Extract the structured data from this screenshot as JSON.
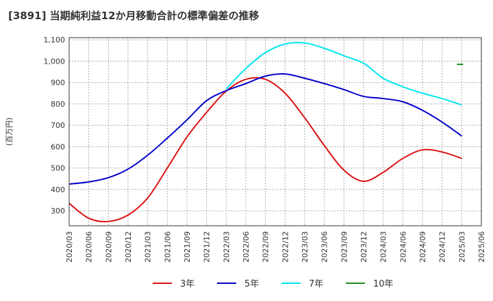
{
  "chart_data": {
    "type": "line",
    "title": "[3891]  当期純利益12か月移動合計の標準偏差の推移",
    "xlabel": "",
    "ylabel": "(百万円)",
    "ylim": [
      230,
      1110
    ],
    "yticks": [
      300,
      400,
      500,
      600,
      700,
      800,
      900,
      1000,
      1100
    ],
    "ytick_labels": [
      "300",
      "400",
      "500",
      "600",
      "700",
      "800",
      "900",
      "1,000",
      "1,100"
    ],
    "xticks": [
      "2020/03",
      "2020/06",
      "2020/09",
      "2020/12",
      "2021/03",
      "2021/06",
      "2021/09",
      "2021/12",
      "2022/03",
      "2022/06",
      "2022/09",
      "2022/12",
      "2023/03",
      "2023/06",
      "2023/09",
      "2023/12",
      "2024/03",
      "2024/06",
      "2024/09",
      "2024/12",
      "2025/03",
      "2025/06"
    ],
    "grid": true,
    "legend_position": "bottom",
    "series": [
      {
        "name": "3年",
        "color": "#dd1111",
        "x": [
          "2020/03",
          "2020/06",
          "2020/09",
          "2020/12",
          "2021/03",
          "2021/06",
          "2021/09",
          "2021/12",
          "2022/03",
          "2022/06",
          "2022/09",
          "2022/12",
          "2023/03",
          "2023/06",
          "2023/09",
          "2023/12",
          "2024/03",
          "2024/06",
          "2024/09",
          "2024/12",
          "2025/03"
        ],
        "values": [
          335,
          265,
          250,
          280,
          360,
          500,
          645,
          760,
          860,
          915,
          915,
          850,
          735,
          605,
          490,
          438,
          480,
          545,
          585,
          575,
          545
        ]
      },
      {
        "name": "5年",
        "color": "#0000cc",
        "x": [
          "2020/03",
          "2020/06",
          "2020/09",
          "2020/12",
          "2021/03",
          "2021/06",
          "2021/09",
          "2021/12",
          "2022/03",
          "2022/06",
          "2022/09",
          "2022/12",
          "2023/03",
          "2023/06",
          "2023/09",
          "2023/12",
          "2024/03",
          "2024/06",
          "2024/09",
          "2024/12",
          "2025/03"
        ],
        "values": [
          425,
          435,
          455,
          495,
          560,
          640,
          725,
          815,
          862,
          895,
          930,
          940,
          920,
          895,
          867,
          835,
          825,
          810,
          770,
          715,
          650
        ]
      },
      {
        "name": "7年",
        "color": "#00e5ee",
        "x": [
          "2022/03",
          "2022/06",
          "2022/09",
          "2022/12",
          "2023/03",
          "2023/06",
          "2023/09",
          "2023/12",
          "2024/03",
          "2024/06",
          "2024/09",
          "2024/12",
          "2025/03"
        ],
        "values": [
          870,
          965,
          1040,
          1080,
          1085,
          1060,
          1025,
          990,
          920,
          880,
          850,
          825,
          795
        ]
      },
      {
        "name": "10年",
        "color": "#228822",
        "x": [
          "2025/03"
        ],
        "values": [
          985
        ]
      }
    ]
  }
}
